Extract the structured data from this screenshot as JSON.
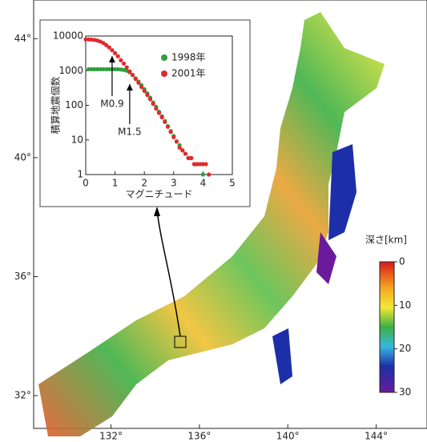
{
  "map": {
    "lon_lim": [
      128.5,
      146.3
    ],
    "lat_lim": [
      30.9,
      45.3
    ],
    "lon_ticks": [
      {
        "value": 132,
        "label": "132°"
      },
      {
        "value": 136,
        "label": "136°"
      },
      {
        "value": 140,
        "label": "140°"
      },
      {
        "value": 144,
        "label": "144°"
      }
    ],
    "lat_ticks": [
      {
        "value": 32,
        "label": "32°"
      },
      {
        "value": 36,
        "label": "36°"
      },
      {
        "value": 40,
        "label": "40°"
      },
      {
        "value": 44,
        "label": "44°"
      }
    ]
  },
  "colorbar": {
    "title": "深さ[km]",
    "lim": [
      0,
      30
    ],
    "ticks": [
      0,
      10,
      20,
      30
    ]
  },
  "chart_data": {
    "type": "scatter",
    "xlabel": "マグニチュード",
    "ylabel": "積算地震個数",
    "xlim": [
      0,
      5
    ],
    "ylim": [
      1,
      10000
    ],
    "log_y": true,
    "xticks": [
      0,
      1,
      2,
      3,
      4,
      5
    ],
    "yticks": [
      1,
      10,
      100,
      1000,
      10000
    ],
    "series": [
      {
        "name": "1998年",
        "color": "#2e9e3a",
        "x": [
          0.1,
          0.2,
          0.3,
          0.4,
          0.5,
          0.6,
          0.7,
          0.8,
          0.9,
          1.0,
          1.1,
          1.2,
          1.3,
          1.4,
          1.5,
          1.6,
          1.7,
          1.8,
          1.9,
          2.0,
          2.1,
          2.2,
          2.3,
          2.4,
          2.5,
          2.6,
          2.7,
          2.8,
          2.9,
          3.0,
          3.1,
          3.2,
          3.3,
          3.4,
          3.5,
          3.6,
          3.7,
          3.8,
          4.0
        ],
        "values": [
          1100,
          1100,
          1100,
          1100,
          1100,
          1100,
          1100,
          1100,
          1100,
          1100,
          1100,
          1080,
          1050,
          1000,
          900,
          750,
          600,
          480,
          380,
          290,
          220,
          165,
          120,
          90,
          65,
          48,
          35,
          25,
          18,
          13,
          9,
          7,
          5,
          4,
          3,
          3,
          2,
          2,
          1
        ]
      },
      {
        "name": "2001年",
        "color": "#e02a2a",
        "x": [
          0.0,
          0.1,
          0.2,
          0.3,
          0.4,
          0.5,
          0.6,
          0.7,
          0.8,
          0.9,
          1.0,
          1.1,
          1.2,
          1.3,
          1.4,
          1.5,
          1.6,
          1.7,
          1.8,
          1.9,
          2.0,
          2.1,
          2.2,
          2.3,
          2.4,
          2.5,
          2.6,
          2.7,
          2.8,
          2.9,
          3.0,
          3.1,
          3.2,
          3.3,
          3.4,
          3.5,
          3.6,
          3.7,
          3.8,
          3.9,
          4.0,
          4.1,
          4.2
        ],
        "values": [
          8000,
          8000,
          7900,
          7700,
          7400,
          6900,
          6300,
          5500,
          4700,
          3900,
          3200,
          2600,
          2000,
          1600,
          1250,
          950,
          750,
          580,
          450,
          340,
          260,
          200,
          150,
          110,
          80,
          60,
          45,
          33,
          24,
          17,
          12,
          9,
          6,
          5,
          4,
          3,
          3,
          2,
          2,
          2,
          2,
          2,
          1
        ]
      }
    ],
    "annotations": [
      {
        "text": "M0.9",
        "x": 0.9
      },
      {
        "text": "M1.5",
        "x": 1.5
      }
    ]
  }
}
